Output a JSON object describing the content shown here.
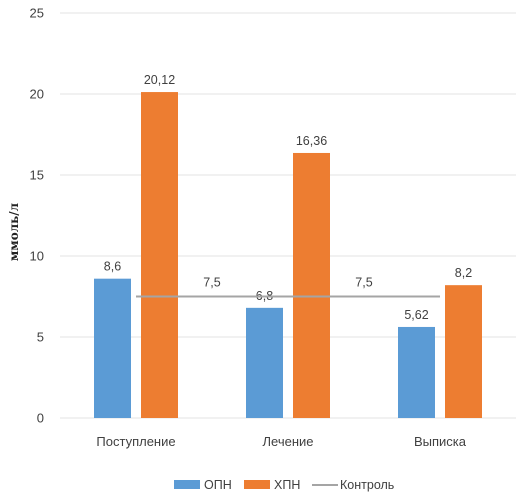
{
  "chart_data": {
    "type": "bar",
    "categories": [
      "Поступление",
      "Лечение",
      "Выписка"
    ],
    "series": [
      {
        "name": "ОПН",
        "values": [
          8.6,
          6.8,
          5.62
        ],
        "labels": [
          "8,6",
          "6,8",
          "5,62"
        ],
        "color": "#5b9bd5"
      },
      {
        "name": "ХПН",
        "values": [
          20.12,
          16.36,
          8.2
        ],
        "labels": [
          "20,12",
          "16,36",
          "8,2"
        ],
        "color": "#ed7d31"
      }
    ],
    "reference_line": {
      "name": "Контроль",
      "value": 7.5,
      "labels": [
        "7,5",
        "7,5"
      ],
      "color": "#a5a5a5"
    },
    "ylabel": "ммоль/л",
    "ylim": [
      0,
      25
    ],
    "yticks": [
      0,
      5,
      10,
      15,
      20,
      25
    ],
    "grid": true,
    "legend": "bottom-center"
  }
}
